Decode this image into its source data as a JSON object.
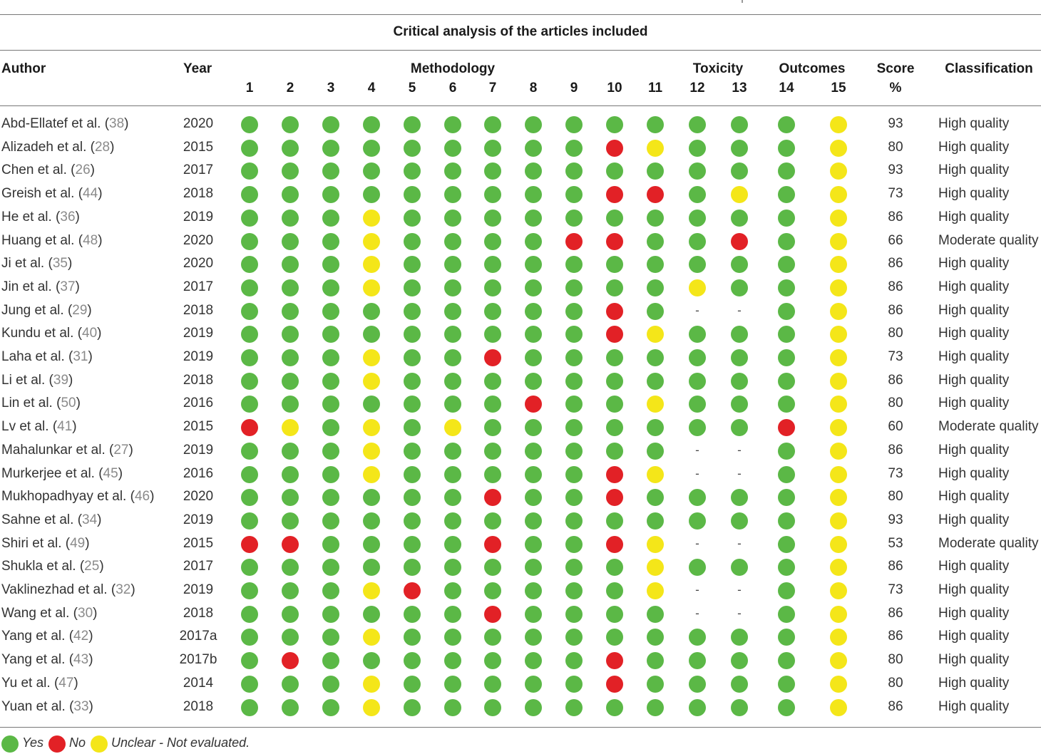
{
  "title": "Critical analysis of the articles included",
  "headers": {
    "author": "Author",
    "year": "Year",
    "methodology": "Methodology",
    "toxicity": "Toxicity",
    "outcomes": "Outcomes",
    "score": "Score",
    "score_unit": "%",
    "classification": "Classification",
    "items": [
      "1",
      "2",
      "3",
      "4",
      "5",
      "6",
      "7",
      "8",
      "9",
      "10",
      "11",
      "12",
      "13",
      "14",
      "15"
    ]
  },
  "colors": {
    "yes": "#5bb846",
    "no": "#e22126",
    "unclear": "#f4e619"
  },
  "rows": [
    {
      "author": "Abd-Ellatef et al. (",
      "ref": "38",
      "close": ")",
      "year": "2020",
      "marks": "GGGGGGGGGGGGGGY",
      "score": "93",
      "classification": "High quality"
    },
    {
      "author": "Alizadeh et al. (",
      "ref": "28",
      "close": ")",
      "year": "2015",
      "marks": "GGGGGGGGGRYGGGY",
      "score": "80",
      "classification": "High quality"
    },
    {
      "author": "Chen et al. (",
      "ref": "26",
      "close": ")",
      "year": "2017",
      "marks": "GGGGGGGGGGGGGGY",
      "score": "93",
      "classification": "High quality"
    },
    {
      "author": "Greish et al. (",
      "ref": "44",
      "close": ")",
      "year": "2018",
      "marks": "GGGGGGGGGRRGYGY",
      "score": "73",
      "classification": "High quality"
    },
    {
      "author": "He et al. (",
      "ref": "36",
      "close": ")",
      "year": "2019",
      "marks": "GGGYGGGGGGGGGGY",
      "score": "86",
      "classification": "High quality"
    },
    {
      "author": "Huang et al. (",
      "ref": "48",
      "close": ")",
      "year": "2020",
      "marks": "GGGYGGGGRRGGRGY",
      "score": "66",
      "classification": "Moderate quality"
    },
    {
      "author": "Ji et al. (",
      "ref": "35",
      "close": ")",
      "year": "2020",
      "marks": "GGGYGGGGGGGGGGY",
      "score": "86",
      "classification": "High quality"
    },
    {
      "author": "Jin et al. (",
      "ref": "37",
      "close": ")",
      "year": "2017",
      "marks": "GGGYGGGGGGGYGGY",
      "score": "86",
      "classification": "High quality"
    },
    {
      "author": "Jung et al. (",
      "ref": "29",
      "close": ")",
      "year": "2018",
      "marks": "GGGGGGGGGRG--GY",
      "score": "86",
      "classification": "High quality"
    },
    {
      "author": "Kundu et al. (",
      "ref": "40",
      "close": ")",
      "year": "2019",
      "marks": "GGGGGGGGGRYGGGY",
      "score": "80",
      "classification": "High quality"
    },
    {
      "author": "Laha et al. (",
      "ref": "31",
      "close": ")",
      "year": "2019",
      "marks": "GGGYGGRGGGGGGGY",
      "score": "73",
      "classification": "High quality"
    },
    {
      "author": "Li et al. (",
      "ref": "39",
      "close": ")",
      "year": "2018",
      "marks": "GGGYGGGGGGGGGGY",
      "score": "86",
      "classification": "High quality"
    },
    {
      "author": "Lin et al. (",
      "ref": "50",
      "close": ")",
      "year": "2016",
      "marks": "GGGGGGGRGGYGGGY",
      "score": "80",
      "classification": "High quality"
    },
    {
      "author": "Lv et al. (",
      "ref": "41",
      "close": ")",
      "year": "2015",
      "marks": "RYGYGYGGGGGGGRY",
      "score": "60",
      "classification": "Moderate quality"
    },
    {
      "author": "Mahalunkar et al. (",
      "ref": "27",
      "close": ")",
      "year": "2019",
      "marks": "GGGYGGGGGGG--GY",
      "score": "86",
      "classification": "High quality"
    },
    {
      "author": "Murkerjee et al. (",
      "ref": "45",
      "close": ")",
      "year": "2016",
      "marks": "GGGYGGGGGRY--GY",
      "score": "73",
      "classification": "High quality"
    },
    {
      "author": "Mukhopadhyay et al. (",
      "ref": "46",
      "close": ")",
      "year": "2020",
      "marks": "GGGGGGRGGRGGGGY",
      "score": "80",
      "classification": "High quality"
    },
    {
      "author": "Sahne et al. (",
      "ref": "34",
      "close": ")",
      "year": "2019",
      "marks": "GGGGGGGGGGGGGGY",
      "score": "93",
      "classification": "High quality"
    },
    {
      "author": "Shiri et al. (",
      "ref": "49",
      "close": ")",
      "year": "2015",
      "marks": "RRGGGGRGGRY--GY",
      "score": "53",
      "classification": "Moderate quality"
    },
    {
      "author": "Shukla et al. (",
      "ref": "25",
      "close": ")",
      "year": "2017",
      "marks": "GGGGGGGGGGYGGGY",
      "score": "86",
      "classification": "High quality"
    },
    {
      "author": "Vaklinezhad et al. (",
      "ref": "32",
      "close": ")",
      "year": "2019",
      "marks": "GGGYRGGGGGY--GY",
      "score": "73",
      "classification": "High quality"
    },
    {
      "author": "Wang et al. (",
      "ref": "30",
      "close": ")",
      "year": "2018",
      "marks": "GGGGGGRGGGG--GY",
      "score": "86",
      "classification": "High quality"
    },
    {
      "author": "Yang et al. (",
      "ref": "42",
      "close": ")",
      "year": "2017a",
      "marks": "GGGYGGGGGGGGGGY",
      "score": "86",
      "classification": "High quality"
    },
    {
      "author": "Yang et al. (",
      "ref": "43",
      "close": ")",
      "year": "2017b",
      "marks": "GRGGGGGGGRGGGGY",
      "score": "80",
      "classification": "High quality"
    },
    {
      "author": "Yu et al. (",
      "ref": "47",
      "close": ")",
      "year": "2014",
      "marks": "GGGYGGGGGRGGGGY",
      "score": "80",
      "classification": "High quality"
    },
    {
      "author": "Yuan et al. (",
      "ref": "33",
      "close": ")",
      "year": "2018",
      "marks": "GGGYGGGGGGGGGGY",
      "score": "86",
      "classification": "High quality"
    }
  ],
  "legend": {
    "yes": "Yes",
    "no": "No",
    "unclear": "Unclear - Not evaluated."
  }
}
